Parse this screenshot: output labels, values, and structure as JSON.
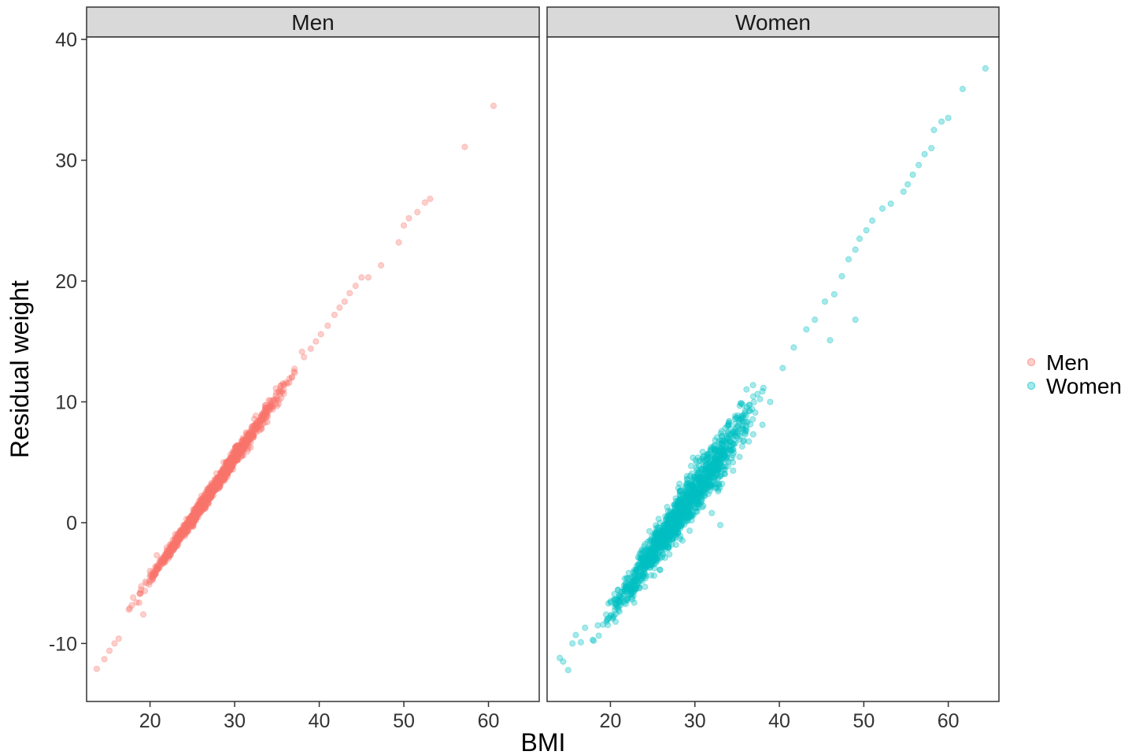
{
  "chart_data": {
    "type": "scatter",
    "facet_by": "sex",
    "xlabel": "BMI",
    "ylabel": "Residual weight",
    "xlim": [
      12.5,
      66
    ],
    "ylim": [
      -14.8,
      40.2
    ],
    "x_ticks": [
      20,
      30,
      40,
      50,
      60
    ],
    "y_ticks": [
      -10,
      0,
      10,
      20,
      30,
      40
    ],
    "x_tick_labels": [
      "20",
      "30",
      "40",
      "50",
      "60"
    ],
    "y_tick_labels": [
      "-10",
      "0",
      "10",
      "20",
      "30",
      "40"
    ],
    "grid": false,
    "legend_position": "right",
    "point_opacity": 0.35,
    "panels": [
      {
        "strip_label": "Men",
        "series": "Men",
        "color": "#F8766D",
        "trend": {
          "slope": 1.0,
          "intercept": -24.65,
          "spread": 0.18,
          "x_range": [
            13.5,
            61
          ],
          "bulk_x_range": [
            17,
            38
          ]
        },
        "points": [
          [
            13.7,
            -12.1
          ],
          [
            14.6,
            -11.3
          ],
          [
            15.2,
            -10.6
          ],
          [
            15.8,
            -10.0
          ],
          [
            16.3,
            -9.6
          ],
          [
            17.5,
            -7.2
          ],
          [
            18.0,
            -6.2
          ],
          [
            18.4,
            -6.6
          ],
          [
            19.2,
            -7.6
          ],
          [
            20.0,
            -4.0
          ],
          [
            20.8,
            -2.7
          ],
          [
            22.0,
            -2.3
          ],
          [
            23.2,
            -1.2
          ],
          [
            24.3,
            0.3
          ],
          [
            25.6,
            1.5
          ],
          [
            26.8,
            2.8
          ],
          [
            27.9,
            3.5
          ],
          [
            29.0,
            4.8
          ],
          [
            30.2,
            5.6
          ],
          [
            31.3,
            6.9
          ],
          [
            32.5,
            8.0
          ],
          [
            33.7,
            9.2
          ],
          [
            35.0,
            10.3
          ],
          [
            36.1,
            11.6
          ],
          [
            37.0,
            12.5
          ],
          [
            38.2,
            13.7
          ],
          [
            39.0,
            14.4
          ],
          [
            39.6,
            15.0
          ],
          [
            40.2,
            15.6
          ],
          [
            41.0,
            16.3
          ],
          [
            41.8,
            17.2
          ],
          [
            42.4,
            17.8
          ],
          [
            43.0,
            18.3
          ],
          [
            43.6,
            19.0
          ],
          [
            44.3,
            19.6
          ],
          [
            45.0,
            20.3
          ],
          [
            45.8,
            20.3
          ],
          [
            47.3,
            21.3
          ],
          [
            49.4,
            23.2
          ],
          [
            50.0,
            24.6
          ],
          [
            50.6,
            25.2
          ],
          [
            51.6,
            25.7
          ],
          [
            52.5,
            26.5
          ],
          [
            53.1,
            26.8
          ],
          [
            57.2,
            31.1
          ],
          [
            60.6,
            34.5
          ]
        ]
      },
      {
        "strip_label": "Women",
        "series": "Women",
        "color": "#00BFC4",
        "trend": {
          "slope": 1.0,
          "intercept": -27.45,
          "spread": 0.55,
          "x_range": [
            14,
            64.5
          ],
          "bulk_x_range": [
            17,
            40
          ]
        },
        "points": [
          [
            14.0,
            -11.2
          ],
          [
            14.4,
            -11.5
          ],
          [
            15.0,
            -12.2
          ],
          [
            15.5,
            -10.0
          ],
          [
            15.9,
            -9.3
          ],
          [
            16.5,
            -9.9
          ],
          [
            17.0,
            -8.7
          ],
          [
            17.9,
            -9.7
          ],
          [
            18.5,
            -8.5
          ],
          [
            21.8,
            -5.3
          ],
          [
            22.9,
            -5.2
          ],
          [
            25.0,
            -3.2
          ],
          [
            26.3,
            -1.6
          ],
          [
            28.0,
            -0.8
          ],
          [
            30.0,
            1.8
          ],
          [
            32.0,
            0.8
          ],
          [
            33.0,
            -0.2
          ],
          [
            34.5,
            5.0
          ],
          [
            35.8,
            6.8
          ],
          [
            38.0,
            8.1
          ],
          [
            40.4,
            12.8
          ],
          [
            41.7,
            14.5
          ],
          [
            43.2,
            16.0
          ],
          [
            44.2,
            16.8
          ],
          [
            45.4,
            18.3
          ],
          [
            46.0,
            15.1
          ],
          [
            46.5,
            18.9
          ],
          [
            47.4,
            20.4
          ],
          [
            48.2,
            21.8
          ],
          [
            49.0,
            22.6
          ],
          [
            49.0,
            16.8
          ],
          [
            49.5,
            23.5
          ],
          [
            50.3,
            24.2
          ],
          [
            51.0,
            25.0
          ],
          [
            52.2,
            26.0
          ],
          [
            53.2,
            26.4
          ],
          [
            54.7,
            27.4
          ],
          [
            55.2,
            28.0
          ],
          [
            55.8,
            28.8
          ],
          [
            56.5,
            29.6
          ],
          [
            57.2,
            30.5
          ],
          [
            58.0,
            31.0
          ],
          [
            58.3,
            32.5
          ],
          [
            59.2,
            33.2
          ],
          [
            60.0,
            33.5
          ],
          [
            61.7,
            35.9
          ],
          [
            64.4,
            37.6
          ]
        ]
      }
    ],
    "legend": [
      {
        "label": "Men",
        "color": "#F8766D"
      },
      {
        "label": "Women",
        "color": "#00BFC4"
      }
    ]
  }
}
